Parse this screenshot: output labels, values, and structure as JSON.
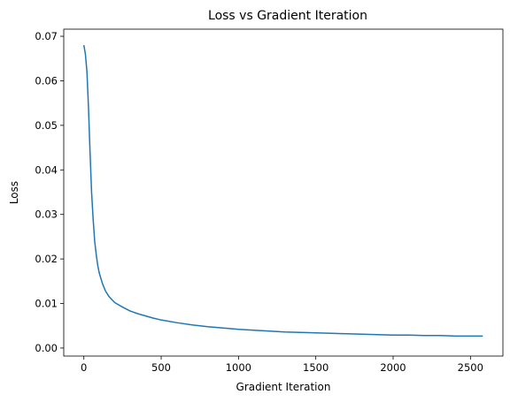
{
  "chart_data": {
    "type": "line",
    "title": "Loss vs Gradient Iteration",
    "xlabel": "Gradient Iteration",
    "ylabel": "Loss",
    "xlim": [
      -130,
      2710
    ],
    "ylim": [
      -0.0018,
      0.0716
    ],
    "xticks": [
      0,
      500,
      1000,
      1500,
      2000,
      2500
    ],
    "yticks": [
      0.0,
      0.01,
      0.02,
      0.03,
      0.04,
      0.05,
      0.06,
      0.07
    ],
    "ytick_labels": [
      "0.00",
      "0.01",
      "0.02",
      "0.03",
      "0.04",
      "0.05",
      "0.06",
      "0.07"
    ],
    "grid": false,
    "series": [
      {
        "color": "#1f77b4",
        "x": [
          0,
          10,
          20,
          30,
          40,
          50,
          60,
          70,
          80,
          90,
          100,
          120,
          140,
          160,
          180,
          200,
          250,
          300,
          350,
          400,
          450,
          500,
          600,
          700,
          800,
          900,
          1000,
          1100,
          1200,
          1300,
          1400,
          1500,
          1600,
          1700,
          1800,
          1900,
          2000,
          2100,
          2200,
          2300,
          2400,
          2500,
          2580
        ],
        "y": [
          0.068,
          0.066,
          0.062,
          0.054,
          0.044,
          0.035,
          0.029,
          0.024,
          0.021,
          0.0185,
          0.0168,
          0.0145,
          0.0128,
          0.0117,
          0.0109,
          0.0102,
          0.0092,
          0.0083,
          0.0077,
          0.0072,
          0.0067,
          0.0063,
          0.0057,
          0.0052,
          0.0048,
          0.0045,
          0.0042,
          0.004,
          0.0038,
          0.0036,
          0.0035,
          0.0034,
          0.0033,
          0.0032,
          0.0031,
          0.003,
          0.0029,
          0.0029,
          0.0028,
          0.0028,
          0.0027,
          0.0027,
          0.0027
        ]
      }
    ]
  }
}
